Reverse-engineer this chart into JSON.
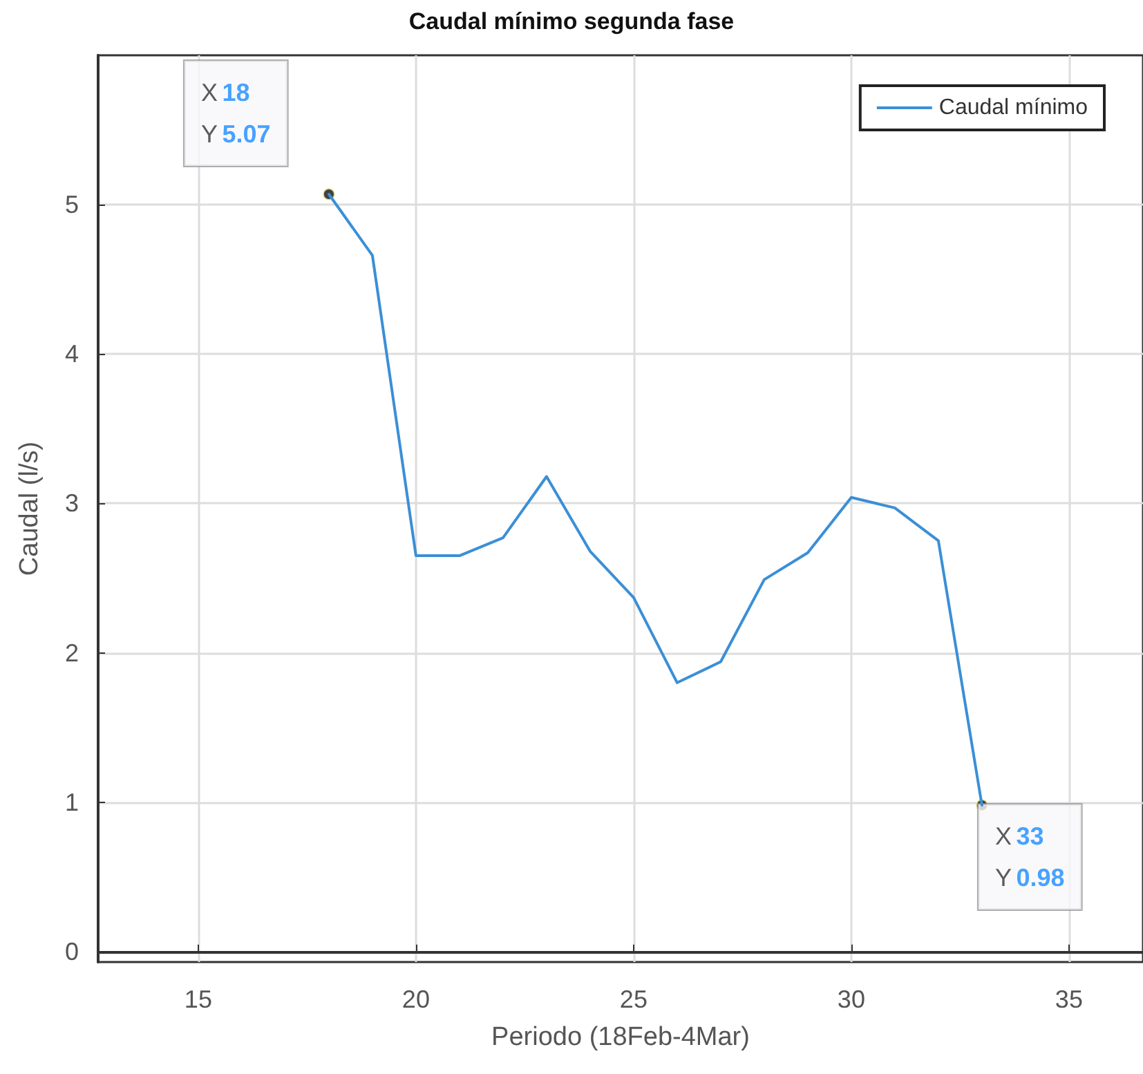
{
  "chart_data": {
    "type": "line",
    "title": "Caudal mínimo segunda fase",
    "xlabel": "Periodo (18Feb-4Mar)",
    "ylabel": "Caudal (l/s)",
    "x": [
      18,
      19,
      20,
      21,
      22,
      23,
      24,
      25,
      26,
      27,
      28,
      29,
      30,
      31,
      32,
      33
    ],
    "series": [
      {
        "name": "Caudal mínimo",
        "color": "#3b8fd6",
        "values": [
          5.07,
          4.66,
          2.65,
          2.65,
          2.77,
          3.18,
          2.68,
          2.37,
          1.8,
          1.94,
          2.49,
          2.67,
          3.04,
          2.97,
          2.75,
          0.98
        ]
      }
    ],
    "xlim": [
      12.7,
      36.7
    ],
    "xticks": [
      15,
      20,
      25,
      30,
      35
    ],
    "ylim": [
      -0.07,
      6
    ],
    "yticks": [
      0,
      1,
      2,
      3,
      4,
      5
    ],
    "annotations": [
      {
        "text": "X 18\nY 5.07",
        "x": 18,
        "y": 5.07
      },
      {
        "text": "X 33\nY 0.98",
        "x": 33,
        "y": 0.98
      }
    ],
    "grid": true,
    "legend": "top right",
    "marker": "none",
    "line_style": "solid"
  }
}
